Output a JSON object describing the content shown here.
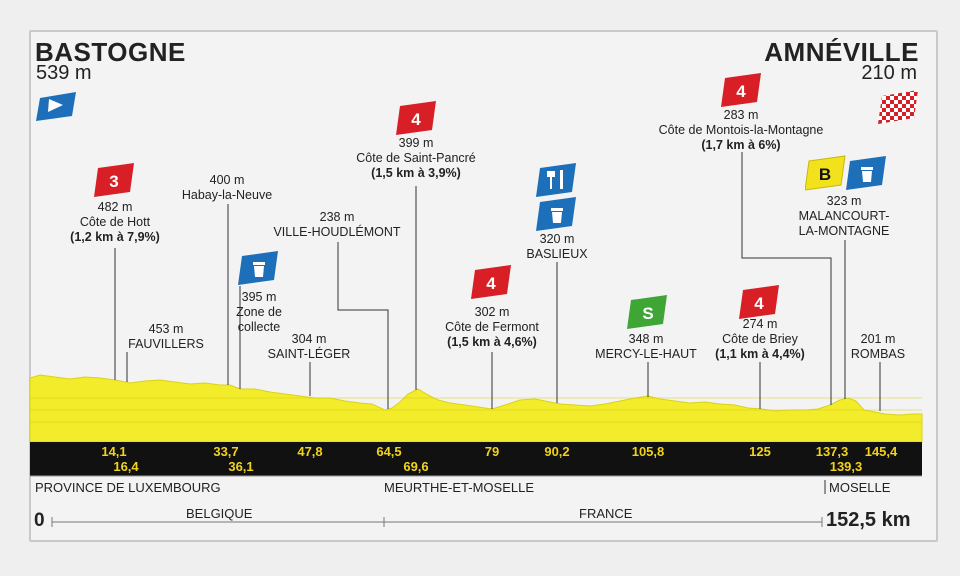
{
  "start": {
    "name": "BASTOGNE",
    "alt": "539 m"
  },
  "finish": {
    "name": "AMNÉVILLE",
    "alt": "210 m"
  },
  "total": {
    "zero": "0",
    "distance": "152,5 km"
  },
  "countries": [
    "BELGIQUE",
    "FRANCE"
  ],
  "regions": [
    "PROVINCE DE LUXEMBOURG",
    "MEURTHE-ET-MOSELLE",
    "MOSELLE"
  ],
  "km_markers_top": [
    "14,1",
    "33,7",
    "47,8",
    "64,5",
    "79",
    "90,2",
    "105,8",
    "125",
    "137,3",
    "145,4"
  ],
  "km_markers_bottom": [
    "16,4",
    "36,1",
    "69,6",
    "139,3"
  ],
  "points": [
    {
      "alt": "482 m",
      "name": "Côte de Hott",
      "detail": "(1,2 km à 7,9%)",
      "cat": "3"
    },
    {
      "alt": "453 m",
      "name": "FAUVILLERS"
    },
    {
      "alt": "400 m",
      "name": "Habay-la-Neuve"
    },
    {
      "alt": "395 m",
      "name": "Zone de",
      "name2": "collecte"
    },
    {
      "alt": "304 m",
      "name": "SAINT-LÉGER"
    },
    {
      "alt": "238 m",
      "name": "VILLE-HOUDLÉMONT"
    },
    {
      "alt": "399 m",
      "name": "Côte de Saint-Pancré",
      "detail": "(1,5 km à 3,9%)",
      "cat": "4"
    },
    {
      "alt": "302 m",
      "name": "Côte de Fermont",
      "detail": "(1,5 km à 4,6%)",
      "cat": "4"
    },
    {
      "alt": "320 m",
      "name": "BASLIEUX"
    },
    {
      "alt": "348 m",
      "name": "MERCY-LE-HAUT"
    },
    {
      "alt": "274 m",
      "name": "Côte de Briey",
      "detail": "(1,1 km à 4,4%)",
      "cat": "4"
    },
    {
      "alt": "283 m",
      "name": "Côte de Montois-la-Montagne",
      "detail": "(1,7 km à 6%)",
      "cat": "4"
    },
    {
      "alt": "323 m",
      "name": "MALANCOURT-",
      "name2": "LA-MONTAGNE"
    },
    {
      "alt": "201 m",
      "name": "ROMBAS"
    }
  ],
  "badges": {
    "cat3": "3",
    "cat4": "4",
    "sprint": "S",
    "bonus": "B"
  },
  "colors": {
    "profile": "#f2ec2b",
    "band": "#111111",
    "km_text": "#f2d31b",
    "climb_badge": "#d81f26",
    "blue_badge": "#1c6fb8",
    "sprint_badge": "#3fa535",
    "bonus_badge": "#f2e21b"
  },
  "icons": [
    "start-flag-icon",
    "finish-checkered-flag-icon",
    "feed-zone-icon",
    "waste-bin-icon",
    "sprint-icon",
    "bonus-icon"
  ]
}
